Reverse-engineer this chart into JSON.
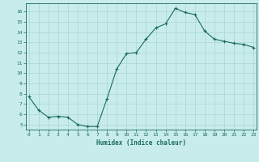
{
  "title": "",
  "xlabel": "Humidex (Indice chaleur)",
  "ylabel": "",
  "x": [
    0,
    1,
    2,
    3,
    4,
    5,
    6,
    7,
    8,
    9,
    10,
    11,
    12,
    13,
    14,
    15,
    16,
    17,
    18,
    19,
    20,
    21,
    22,
    23
  ],
  "y": [
    7.7,
    6.4,
    5.7,
    5.8,
    5.7,
    5.0,
    4.8,
    4.8,
    7.5,
    10.4,
    11.9,
    12.0,
    13.3,
    14.4,
    14.8,
    16.3,
    15.9,
    15.7,
    14.1,
    13.3,
    13.1,
    12.9,
    12.8,
    12.5
  ],
  "line_color": "#1a6b5a",
  "marker": "+",
  "marker_size": 3,
  "bg_color": "#c8ecec",
  "grid_color": "#aad4d4",
  "tick_color": "#1a6b5a",
  "label_color": "#1a6b5a",
  "ylim": [
    4.5,
    16.8
  ],
  "yticks": [
    5,
    6,
    7,
    8,
    9,
    10,
    11,
    12,
    13,
    14,
    15,
    16
  ],
  "xticks": [
    0,
    1,
    2,
    3,
    4,
    5,
    6,
    7,
    8,
    9,
    10,
    11,
    12,
    13,
    14,
    15,
    16,
    17,
    18,
    19,
    20,
    21,
    22,
    23
  ],
  "xlim": [
    -0.3,
    23.3
  ]
}
